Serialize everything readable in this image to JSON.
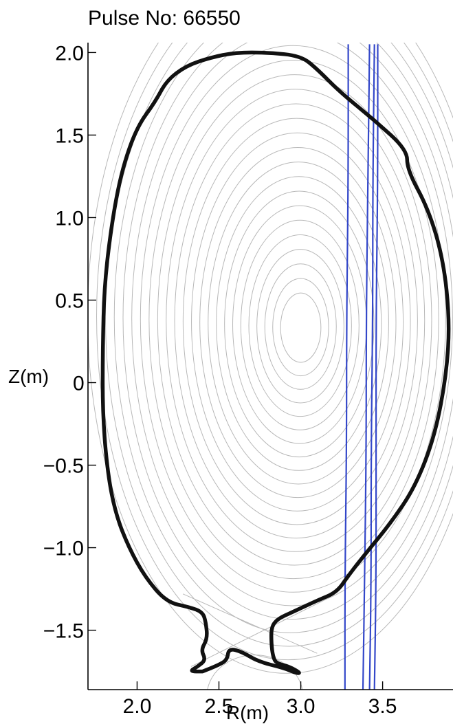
{
  "chart_data": {
    "type": "line",
    "title": "Pulse No: 66550",
    "xlabel": "R(m)",
    "ylabel": "Z(m)",
    "xlim": [
      1.7,
      3.93
    ],
    "ylim": [
      -1.86,
      2.06
    ],
    "x_ticks": [
      "2.0",
      "2.5",
      "3.0",
      "3.5"
    ],
    "x_tick_values": [
      2.0,
      2.5,
      3.0,
      3.5
    ],
    "y_ticks": [
      "2.0",
      "1.5",
      "1.0",
      "0.5",
      "0",
      "−0.5",
      "−1.0",
      "−1.5"
    ],
    "y_tick_values": [
      2.0,
      1.5,
      1.0,
      0.5,
      0.0,
      -0.5,
      -1.0,
      -1.5
    ],
    "grid": false,
    "magnetic_axis": {
      "R": 3.0,
      "Z": 0.33
    },
    "flux_contour_count": 24,
    "series": [
      {
        "role": "separatrix boundary",
        "color": "#111111",
        "points": [
          [
            2.4,
            -1.75
          ],
          [
            2.32,
            -1.75
          ],
          [
            2.37,
            -1.72
          ],
          [
            2.42,
            -1.68
          ],
          [
            2.39,
            -1.62
          ],
          [
            2.43,
            -1.55
          ],
          [
            2.42,
            -1.45
          ],
          [
            2.4,
            -1.39
          ],
          [
            2.32,
            -1.36
          ],
          [
            2.18,
            -1.33
          ],
          [
            2.05,
            -1.18
          ],
          [
            1.95,
            -1.0
          ],
          [
            1.87,
            -0.8
          ],
          [
            1.82,
            -0.55
          ],
          [
            1.79,
            -0.2
          ],
          [
            1.79,
            0.2
          ],
          [
            1.8,
            0.6
          ],
          [
            1.85,
            1.0
          ],
          [
            1.91,
            1.3
          ],
          [
            2.0,
            1.55
          ],
          [
            2.11,
            1.7
          ],
          [
            2.18,
            1.83
          ],
          [
            2.3,
            1.92
          ],
          [
            2.45,
            1.97
          ],
          [
            2.6,
            2.0
          ],
          [
            2.8,
            2.0
          ],
          [
            3.0,
            1.98
          ],
          [
            3.1,
            1.9
          ],
          [
            3.24,
            1.76
          ],
          [
            3.45,
            1.59
          ],
          [
            3.65,
            1.41
          ],
          [
            3.65,
            1.29
          ],
          [
            3.78,
            1.05
          ],
          [
            3.87,
            0.75
          ],
          [
            3.91,
            0.38
          ],
          [
            3.89,
            0.05
          ],
          [
            3.82,
            -0.32
          ],
          [
            3.7,
            -0.63
          ],
          [
            3.55,
            -0.85
          ],
          [
            3.4,
            -1.03
          ],
          [
            3.29,
            -1.17
          ],
          [
            3.22,
            -1.27
          ],
          [
            3.1,
            -1.32
          ],
          [
            2.95,
            -1.39
          ],
          [
            2.86,
            -1.43
          ],
          [
            2.82,
            -1.48
          ],
          [
            2.82,
            -1.58
          ],
          [
            2.83,
            -1.66
          ],
          [
            2.85,
            -1.7
          ],
          [
            2.93,
            -1.72
          ],
          [
            3.0,
            -1.76
          ],
          [
            2.97,
            -1.76
          ],
          [
            2.9,
            -1.73
          ],
          [
            2.74,
            -1.69
          ],
          [
            2.64,
            -1.63
          ],
          [
            2.56,
            -1.61
          ],
          [
            2.55,
            -1.68
          ],
          [
            2.5,
            -1.71
          ],
          [
            2.4,
            -1.75
          ]
        ]
      },
      {
        "role": "sightline",
        "color": "#3347c9",
        "points": [
          [
            3.29,
            2.05
          ],
          [
            3.29,
            1.2
          ],
          [
            3.28,
            0.4
          ],
          [
            3.28,
            -0.4
          ],
          [
            3.27,
            -1.2
          ],
          [
            3.27,
            -1.86
          ]
        ]
      },
      {
        "role": "sightline",
        "color": "#3347c9",
        "points": [
          [
            3.42,
            2.05
          ],
          [
            3.41,
            1.2
          ],
          [
            3.4,
            0.4
          ],
          [
            3.4,
            -0.4
          ],
          [
            3.39,
            -1.2
          ],
          [
            3.38,
            -1.86
          ]
        ]
      },
      {
        "role": "sightline",
        "color": "#3347c9",
        "points": [
          [
            3.45,
            2.05
          ],
          [
            3.44,
            1.2
          ],
          [
            3.44,
            0.4
          ],
          [
            3.43,
            -0.4
          ],
          [
            3.43,
            -1.2
          ],
          [
            3.42,
            -1.86
          ]
        ]
      },
      {
        "role": "sightline",
        "color": "#3347c9",
        "points": [
          [
            3.47,
            2.05
          ],
          [
            3.47,
            1.2
          ],
          [
            3.46,
            0.4
          ],
          [
            3.46,
            -0.4
          ],
          [
            3.46,
            -1.2
          ],
          [
            3.45,
            -1.86
          ]
        ]
      }
    ],
    "colors": {
      "boundary": "#111111",
      "flux": "#b8b8b8",
      "sightline": "#3347c9",
      "axes": "#000000"
    }
  }
}
